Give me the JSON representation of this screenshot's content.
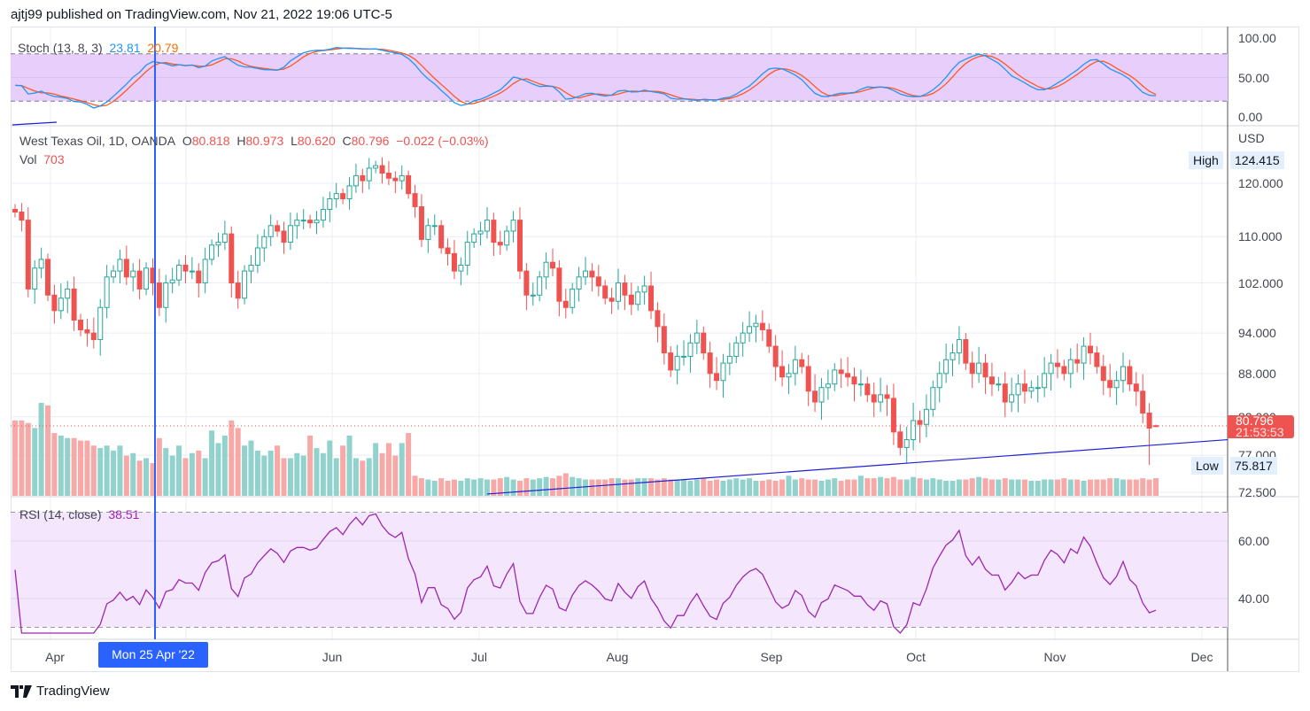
{
  "header": {
    "published": "ajtj99 published on TradingView.com, Nov 21, 2022 19:06 UTC-5"
  },
  "stoch": {
    "label": "Stoch (13, 8, 3)",
    "k_value": "23.81",
    "d_value": "20.79",
    "ticks": [
      "100.00",
      "50.00",
      "0.00"
    ],
    "band": [
      20,
      80
    ]
  },
  "legend": {
    "symbol": "West Texas Oil, 1D, OANDA",
    "o_label": "O",
    "o": "80.818",
    "h_label": "H",
    "h": "80.973",
    "l_label": "L",
    "l": "80.620",
    "c_label": "C",
    "c": "80.796",
    "change": "−0.022 (−0.03%)",
    "vol_label": "Vol",
    "vol": "703"
  },
  "price_axis": {
    "currency": "USD",
    "ticks": [
      "120.000",
      "110.000",
      "102.000",
      "94.000",
      "88.000",
      "82.000",
      "77.000",
      "72.500"
    ],
    "high_label": "High",
    "high": "124.415",
    "low_label": "Low",
    "low": "75.817",
    "last": "80.796",
    "countdown": "21:53:53"
  },
  "rsi": {
    "label": "RSI (14, close)",
    "value": "38.51",
    "ticks": [
      "60.00",
      "40.00"
    ],
    "band": [
      30,
      70
    ]
  },
  "time_axis": {
    "months": [
      "Apr",
      "Jun",
      "Jul",
      "Aug",
      "Sep",
      "Oct",
      "Nov",
      "Dec"
    ],
    "crosshair_date": "Mon 25 Apr '22"
  },
  "footer": {
    "brand": "TradingView"
  },
  "colors": {
    "up": "#26a69a",
    "down": "#ef5350",
    "stoch_k": "#2196f3",
    "stoch_d": "#ff5722",
    "rsi": "#9c27b0",
    "crosshair": "#2962ff",
    "trendline": "#1f1fd6"
  },
  "chart_data": {
    "type": "candlestick",
    "title": "West Texas Oil, 1D, OANDA",
    "y_scale": "log",
    "ylim": [
      72.5,
      126
    ],
    "x_range": [
      "2022-03-23",
      "2022-11-21"
    ],
    "trendline": {
      "from_price": 72.3,
      "to_price": 79.0,
      "from_bar": 72,
      "to_bar": 187
    },
    "closes": [
      114.5,
      113,
      101,
      104.5,
      106,
      100,
      97.5,
      99.5,
      101,
      96,
      94.5,
      94,
      93,
      98,
      103,
      104,
      106,
      103,
      104,
      101,
      104.5,
      102,
      98,
      102,
      102.5,
      105,
      104,
      104,
      102,
      106,
      108.5,
      109,
      110.5,
      102,
      99.5,
      104,
      105,
      108,
      110,
      112,
      111,
      109,
      112,
      113,
      113,
      112.5,
      113,
      115,
      117,
      118,
      117,
      119.5,
      121.5,
      120.5,
      123,
      123.5,
      122,
      121,
      120.5,
      121.5,
      118,
      115.5,
      109.5,
      112,
      112,
      108,
      107,
      104,
      105,
      109,
      110.5,
      111,
      113,
      109,
      108.5,
      111,
      113,
      104,
      100,
      100,
      103,
      105.5,
      104.5,
      99,
      98,
      101,
      103,
      104,
      103,
      101.5,
      99.5,
      99,
      102,
      100,
      98.5,
      100.5,
      101.5,
      97.5,
      95,
      91,
      88.5,
      90.5,
      90.5,
      92.5,
      94,
      91,
      88,
      87,
      89.5,
      90.5,
      92.5,
      94,
      95,
      95.5,
      94.5,
      92,
      89,
      87.5,
      88,
      90,
      89,
      85.5,
      84,
      86,
      86.5,
      88.5,
      88,
      87.5,
      86.5,
      86.5,
      85,
      84,
      85,
      84.5,
      80,
      78,
      79,
      81.5,
      81,
      83,
      86,
      88,
      90,
      91,
      93,
      89.5,
      88,
      89.5,
      87.5,
      86.5,
      86.5,
      84,
      85,
      86.5,
      85.5,
      86,
      86,
      88,
      89.5,
      89,
      88,
      90,
      89.5,
      92,
      91,
      89,
      87,
      86,
      87,
      89,
      86.5,
      85.5,
      82.5,
      80.5,
      80.8
    ],
    "volume": [
      3000,
      3000,
      2900,
      2700,
      3700,
      3600,
      2500,
      2400,
      2300,
      2300,
      2200,
      2200,
      2000,
      1900,
      2000,
      1800,
      2000,
      1600,
      1700,
      1400,
      1500,
      1300,
      2300,
      1900,
      1600,
      2000,
      1500,
      1700,
      1800,
      1500,
      2600,
      2100,
      2400,
      3000,
      2700,
      2000,
      2200,
      1800,
      1600,
      1800,
      2000,
      1500,
      1500,
      1700,
      1600,
      2400,
      1900,
      1700,
      2200,
      1500,
      2000,
      2400,
      1500,
      1400,
      1500,
      2100,
      1700,
      2100,
      1600,
      2100,
      2500,
      800,
      700,
      650,
      600,
      700,
      600,
      650,
      600,
      700,
      650,
      700,
      650,
      650,
      700,
      750,
      650,
      600,
      700,
      650,
      700,
      750,
      700,
      800,
      900,
      750,
      700,
      650,
      650,
      650,
      650,
      700,
      700,
      650,
      650,
      700,
      700,
      700,
      650,
      700,
      650,
      650,
      650,
      600,
      650,
      700,
      600,
      650,
      600,
      650,
      700,
      650,
      700,
      600,
      600,
      650,
      600,
      650,
      800,
      650,
      700,
      650,
      650,
      600,
      650,
      700,
      600,
      650,
      650,
      800,
      700,
      700,
      750,
      700,
      750,
      650,
      650,
      750,
      700,
      650,
      700,
      650,
      600,
      600,
      650,
      650,
      700,
      750,
      700,
      650,
      650,
      700,
      650,
      650,
      650,
      600,
      600,
      650,
      650,
      650,
      700,
      650,
      650,
      600,
      650,
      650,
      650,
      700,
      700,
      650,
      650,
      650,
      700,
      650,
      703
    ]
  }
}
